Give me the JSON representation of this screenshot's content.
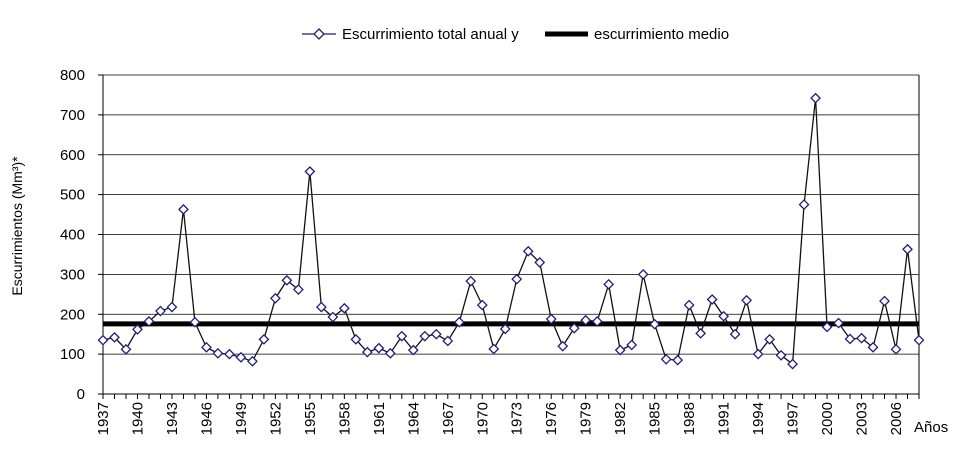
{
  "chart_data": {
    "type": "line",
    "title": "",
    "xlabel": "Años",
    "ylabel": "Escurrimientos (Mm³)*",
    "ylim": [
      0,
      800
    ],
    "yticks": [
      0,
      100,
      200,
      300,
      400,
      500,
      600,
      700,
      800
    ],
    "xrange": [
      1937,
      2008
    ],
    "xticks": [
      1937,
      1940,
      1943,
      1946,
      1949,
      1952,
      1955,
      1958,
      1961,
      1964,
      1967,
      1970,
      1973,
      1976,
      1979,
      1982,
      1985,
      1988,
      1991,
      1994,
      1997,
      2000,
      2003,
      2006
    ],
    "grid": true,
    "legend": {
      "position": "top-center",
      "entries": [
        "Escurrimiento total anual y",
        "escurrimiento medio"
      ]
    },
    "series": [
      {
        "name": "Escurrimiento total anual y",
        "marker": "diamond",
        "color": "#1f1f7a",
        "x": [
          1937,
          1938,
          1939,
          1940,
          1941,
          1942,
          1943,
          1944,
          1945,
          1946,
          1947,
          1948,
          1949,
          1950,
          1951,
          1952,
          1953,
          1954,
          1955,
          1956,
          1957,
          1958,
          1959,
          1960,
          1961,
          1962,
          1963,
          1964,
          1965,
          1966,
          1967,
          1968,
          1969,
          1970,
          1971,
          1972,
          1973,
          1974,
          1975,
          1976,
          1977,
          1978,
          1979,
          1980,
          1981,
          1982,
          1983,
          1984,
          1985,
          1986,
          1987,
          1988,
          1989,
          1990,
          1991,
          1992,
          1993,
          1994,
          1995,
          1996,
          1997,
          1998,
          1999,
          2000,
          2001,
          2002,
          2003,
          2004,
          2005,
          2006,
          2007,
          2008
        ],
        "values": [
          135,
          142,
          112,
          162,
          182,
          208,
          218,
          463,
          180,
          117,
          102,
          100,
          92,
          82,
          137,
          240,
          285,
          262,
          558,
          218,
          193,
          215,
          137,
          105,
          115,
          102,
          145,
          110,
          145,
          150,
          133,
          180,
          283,
          223,
          113,
          163,
          288,
          358,
          330,
          188,
          120,
          165,
          185,
          182,
          275,
          110,
          123,
          300,
          175,
          87,
          85,
          223,
          152,
          237,
          195,
          150,
          235,
          100,
          137,
          97,
          75,
          475,
          742,
          168,
          178,
          138,
          140,
          117,
          233,
          112,
          363,
          135
        ]
      },
      {
        "name": "escurrimiento medio",
        "color": "#000000",
        "value": 176
      }
    ]
  }
}
